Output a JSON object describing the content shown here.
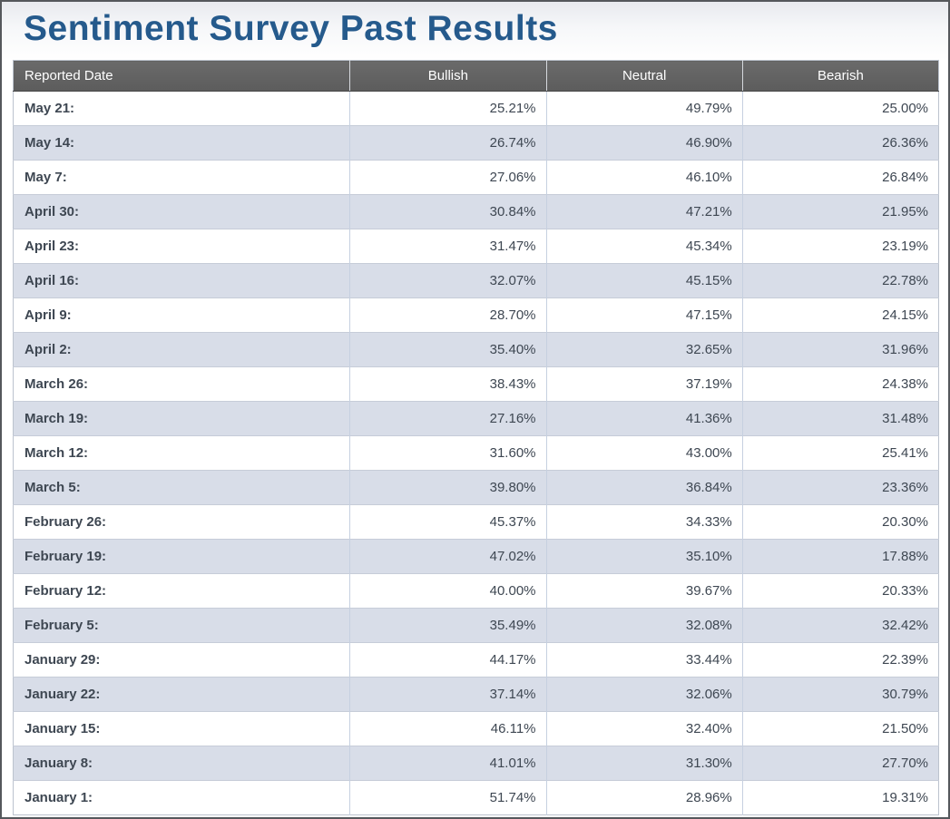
{
  "page": {
    "title": "Sentiment Survey Past Results"
  },
  "colors": {
    "title_text": "#255a8c",
    "header_bg": "#5f5f5f",
    "header_text": "#ffffff",
    "row_bg": "#ffffff",
    "row_alt_bg": "#d8dde8",
    "window_border": "#55585c"
  },
  "table": {
    "columns": [
      "Reported Date",
      "Bullish",
      "Neutral",
      "Bearish"
    ],
    "rows": [
      {
        "date": "May 21:",
        "bullish": "25.21%",
        "neutral": "49.79%",
        "bearish": "25.00%"
      },
      {
        "date": "May 14:",
        "bullish": "26.74%",
        "neutral": "46.90%",
        "bearish": "26.36%"
      },
      {
        "date": "May 7:",
        "bullish": "27.06%",
        "neutral": "46.10%",
        "bearish": "26.84%"
      },
      {
        "date": "April 30:",
        "bullish": "30.84%",
        "neutral": "47.21%",
        "bearish": "21.95%"
      },
      {
        "date": "April 23:",
        "bullish": "31.47%",
        "neutral": "45.34%",
        "bearish": "23.19%"
      },
      {
        "date": "April 16:",
        "bullish": "32.07%",
        "neutral": "45.15%",
        "bearish": "22.78%"
      },
      {
        "date": "April 9:",
        "bullish": "28.70%",
        "neutral": "47.15%",
        "bearish": "24.15%"
      },
      {
        "date": "April 2:",
        "bullish": "35.40%",
        "neutral": "32.65%",
        "bearish": "31.96%"
      },
      {
        "date": "March 26:",
        "bullish": "38.43%",
        "neutral": "37.19%",
        "bearish": "24.38%"
      },
      {
        "date": "March 19:",
        "bullish": "27.16%",
        "neutral": "41.36%",
        "bearish": "31.48%"
      },
      {
        "date": "March 12:",
        "bullish": "31.60%",
        "neutral": "43.00%",
        "bearish": "25.41%"
      },
      {
        "date": "March 5:",
        "bullish": "39.80%",
        "neutral": "36.84%",
        "bearish": "23.36%"
      },
      {
        "date": "February 26:",
        "bullish": "45.37%",
        "neutral": "34.33%",
        "bearish": "20.30%"
      },
      {
        "date": "February 19:",
        "bullish": "47.02%",
        "neutral": "35.10%",
        "bearish": "17.88%"
      },
      {
        "date": "February 12:",
        "bullish": "40.00%",
        "neutral": "39.67%",
        "bearish": "20.33%"
      },
      {
        "date": "February 5:",
        "bullish": "35.49%",
        "neutral": "32.08%",
        "bearish": "32.42%"
      },
      {
        "date": "January 29:",
        "bullish": "44.17%",
        "neutral": "33.44%",
        "bearish": "22.39%"
      },
      {
        "date": "January 22:",
        "bullish": "37.14%",
        "neutral": "32.06%",
        "bearish": "30.79%"
      },
      {
        "date": "January 15:",
        "bullish": "46.11%",
        "neutral": "32.40%",
        "bearish": "21.50%"
      },
      {
        "date": "January 8:",
        "bullish": "41.01%",
        "neutral": "31.30%",
        "bearish": "27.70%"
      },
      {
        "date": "January 1:",
        "bullish": "51.74%",
        "neutral": "28.96%",
        "bearish": "19.31%"
      }
    ]
  },
  "chart_data": {
    "type": "table",
    "title": "Sentiment Survey Past Results",
    "columns": [
      "Reported Date",
      "Bullish",
      "Neutral",
      "Bearish"
    ],
    "categories": [
      "May 21",
      "May 14",
      "May 7",
      "April 30",
      "April 23",
      "April 16",
      "April 9",
      "April 2",
      "March 26",
      "March 19",
      "March 12",
      "March 5",
      "February 26",
      "February 19",
      "February 12",
      "February 5",
      "January 29",
      "January 22",
      "January 15",
      "January 8",
      "January 1"
    ],
    "series": [
      {
        "name": "Bullish",
        "values": [
          25.21,
          26.74,
          27.06,
          30.84,
          31.47,
          32.07,
          28.7,
          35.4,
          38.43,
          27.16,
          31.6,
          39.8,
          45.37,
          47.02,
          40.0,
          35.49,
          44.17,
          37.14,
          46.11,
          41.01,
          51.74
        ]
      },
      {
        "name": "Neutral",
        "values": [
          49.79,
          46.9,
          46.1,
          47.21,
          45.34,
          45.15,
          47.15,
          32.65,
          37.19,
          41.36,
          43.0,
          36.84,
          34.33,
          35.1,
          39.67,
          32.08,
          33.44,
          32.06,
          32.4,
          31.3,
          28.96
        ]
      },
      {
        "name": "Bearish",
        "values": [
          25.0,
          26.36,
          26.84,
          21.95,
          23.19,
          22.78,
          24.15,
          31.96,
          24.38,
          31.48,
          25.41,
          23.36,
          20.3,
          17.88,
          20.33,
          32.42,
          22.39,
          30.79,
          21.5,
          27.7,
          19.31
        ]
      }
    ],
    "unit": "%"
  }
}
